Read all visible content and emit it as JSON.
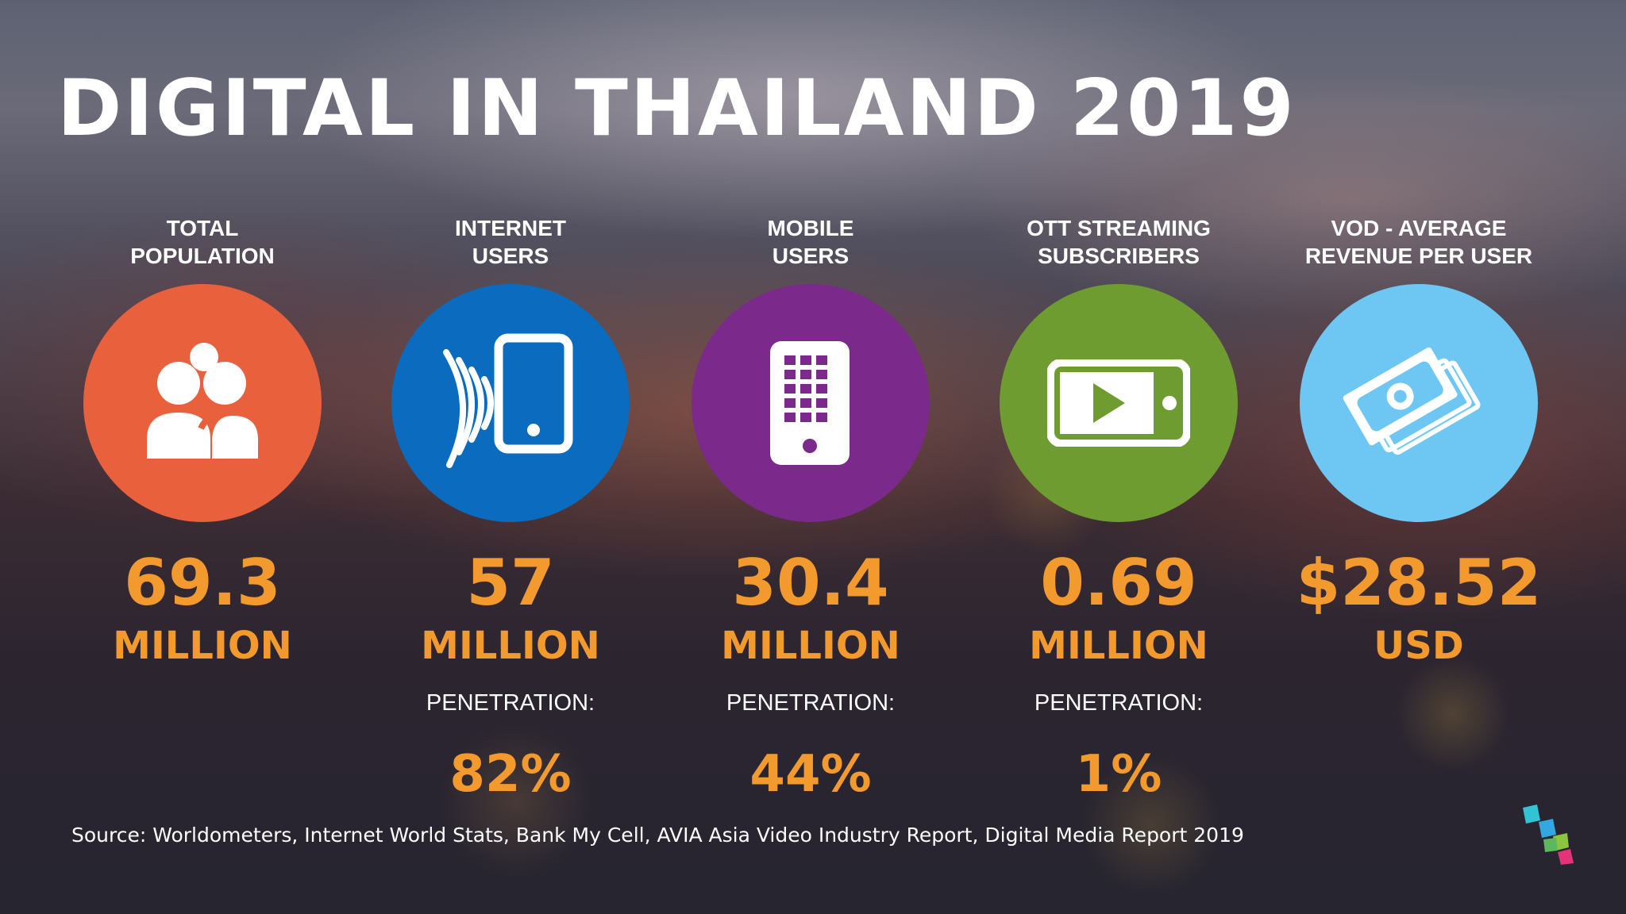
{
  "title": "DIGITAL IN THAILAND 2019",
  "stats": [
    {
      "label_line1": "TOTAL",
      "label_line2": "POPULATION",
      "icon": "people-icon",
      "color": "#e8603c",
      "value": "69.3",
      "unit": "MILLION"
    },
    {
      "label_line1": "INTERNET",
      "label_line2": "USERS",
      "icon": "smartphone-signal-icon",
      "color": "#0a6bbf",
      "value": "57",
      "unit": "MILLION",
      "penetration_label": "PENETRATION:",
      "penetration": "82%"
    },
    {
      "label_line1": "MOBILE",
      "label_line2": "USERS",
      "icon": "mobile-phone-icon",
      "color": "#7b2a8c",
      "value": "30.4",
      "unit": "MILLION",
      "penetration_label": "PENETRATION:",
      "penetration": "44%"
    },
    {
      "label_line1": "OTT STREAMING",
      "label_line2": "SUBSCRIBERS",
      "icon": "video-player-icon",
      "color": "#6f9c30",
      "value": "0.69",
      "unit": "MILLION",
      "penetration_label": "PENETRATION:",
      "penetration": "1%"
    },
    {
      "label_line1": "VOD - AVERAGE",
      "label_line2": "REVENUE PER USER",
      "icon": "money-stack-icon",
      "color": "#6ec6f2",
      "value": "$28.52",
      "unit": "USD"
    }
  ],
  "source": "Source: Worldometers, Internet World Stats, Bank My Cell, AVIA Asia Video Industry Report, Digital Media Report 2019",
  "logo": "cube-logo-icon",
  "accent_color": "#f29a2e"
}
